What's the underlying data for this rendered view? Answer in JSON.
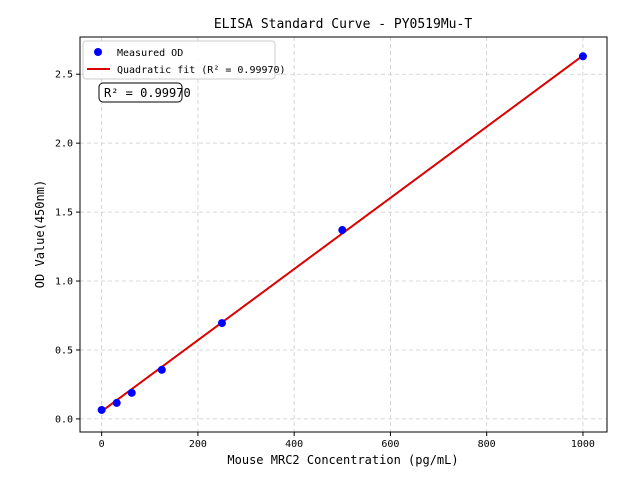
{
  "chart_data": {
    "type": "scatter",
    "title": "ELISA Standard Curve - PY0519Mu-T",
    "xlabel": "Mouse MRC2 Concentration (pg/mL)",
    "ylabel": "OD Value(450nm)",
    "xlim": [
      -45,
      1050
    ],
    "ylim": [
      -0.095,
      2.77
    ],
    "xticks": [
      0,
      200,
      400,
      600,
      800,
      1000
    ],
    "yticks": [
      0.0,
      0.5,
      1.0,
      1.5,
      2.0,
      2.5
    ],
    "xtick_labels": [
      "0",
      "200",
      "400",
      "600",
      "800",
      "1000"
    ],
    "ytick_labels": [
      "0.0",
      "0.5",
      "1.0",
      "1.5",
      "2.0",
      "2.5"
    ],
    "grid": true,
    "legend_placement": "top-left",
    "series": [
      {
        "name": "Measured OD",
        "kind": "scatter",
        "color": "#0000ff",
        "x": [
          0,
          31.25,
          62.5,
          125,
          250,
          500,
          1000
        ],
        "y": [
          0.065,
          0.116,
          0.189,
          0.356,
          0.695,
          1.37,
          2.63
        ]
      },
      {
        "name": "Quadratic fit (R² = 0.99970)",
        "kind": "line",
        "color": "#dd0000",
        "x": [
          0,
          1000
        ],
        "y": [
          0.055,
          2.635
        ]
      }
    ],
    "annotation": "R² = 0.99970"
  }
}
